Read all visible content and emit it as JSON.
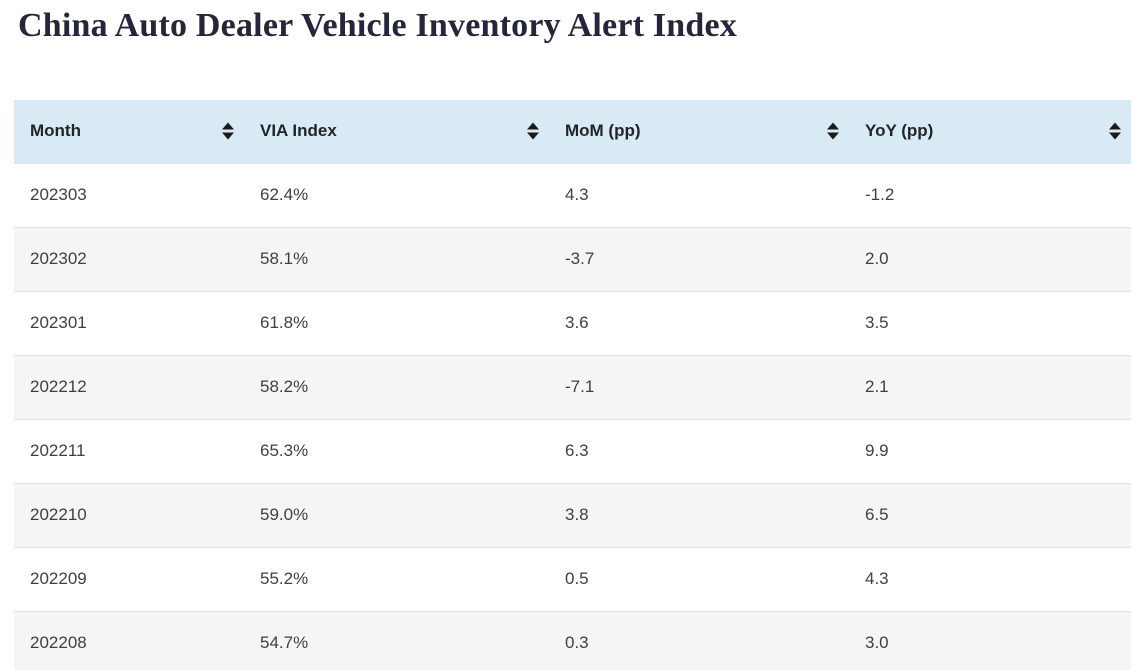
{
  "page": {
    "title": "China Auto Dealer Vehicle Inventory Alert Index"
  },
  "table": {
    "columns": [
      {
        "key": "month",
        "label": "Month",
        "sort_icon": "sort-both-icon"
      },
      {
        "key": "via_index",
        "label": "VIA Index",
        "sort_icon": "sort-both-icon"
      },
      {
        "key": "mom_pp",
        "label": "MoM (pp)",
        "sort_icon": "sort-both-icon"
      },
      {
        "key": "yoy_pp",
        "label": "YoY (pp)",
        "sort_icon": "sort-both-icon"
      }
    ],
    "rows": [
      {
        "month": "202303",
        "via_index": "62.4%",
        "mom_pp": "4.3",
        "yoy_pp": "-1.2"
      },
      {
        "month": "202302",
        "via_index": "58.1%",
        "mom_pp": "-3.7",
        "yoy_pp": "2.0"
      },
      {
        "month": "202301",
        "via_index": "61.8%",
        "mom_pp": "3.6",
        "yoy_pp": "3.5"
      },
      {
        "month": "202212",
        "via_index": "58.2%",
        "mom_pp": "-7.1",
        "yoy_pp": "2.1"
      },
      {
        "month": "202211",
        "via_index": "65.3%",
        "mom_pp": "6.3",
        "yoy_pp": "9.9"
      },
      {
        "month": "202210",
        "via_index": "59.0%",
        "mom_pp": "3.8",
        "yoy_pp": "6.5"
      },
      {
        "month": "202209",
        "via_index": "55.2%",
        "mom_pp": "0.5",
        "yoy_pp": "4.3"
      },
      {
        "month": "202208",
        "via_index": "54.7%",
        "mom_pp": "0.3",
        "yoy_pp": "3.0"
      }
    ]
  },
  "colors": {
    "header_bg": "#d8eaf4",
    "row_alt_bg": "#f5f5f5",
    "row_border": "#e2e2e2",
    "title_text": "#26263a",
    "header_text": "#212529",
    "cell_text": "#404040",
    "sort_icon": "#1a1a1a"
  }
}
